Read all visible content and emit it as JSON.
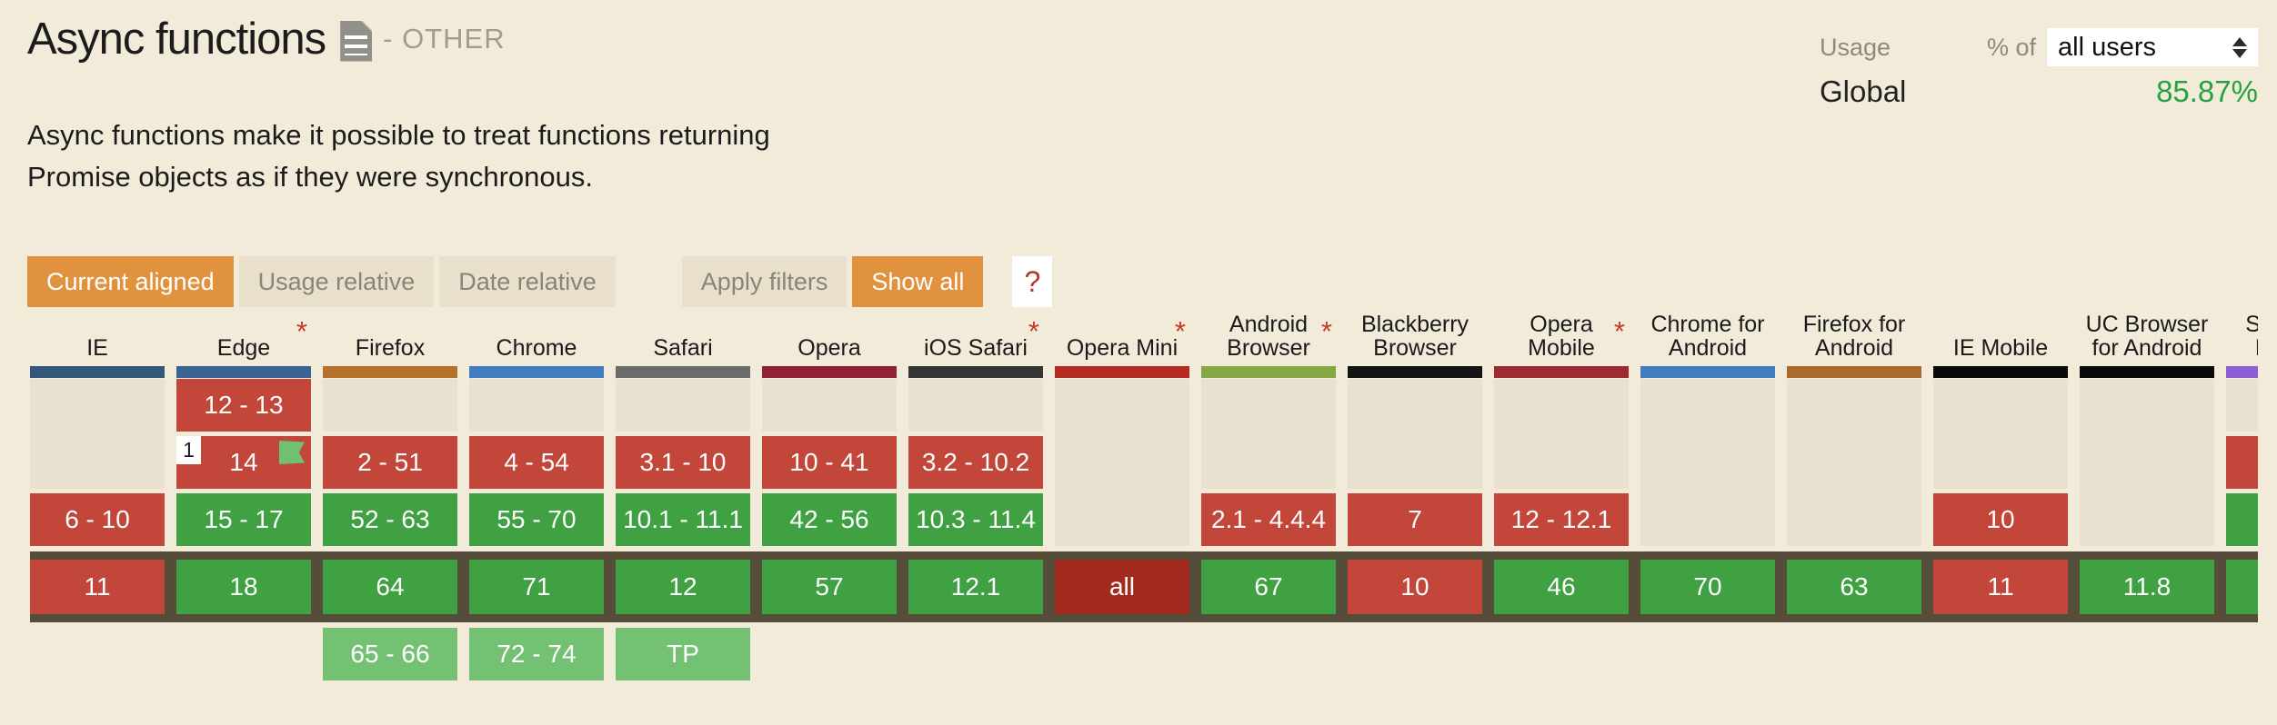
{
  "header": {
    "title": "Async functions",
    "category": "- OTHER",
    "doc_icon": "document-icon"
  },
  "usage": {
    "usage_label": "Usage",
    "percent_of_label": "% of",
    "select_value": "all users",
    "global_label": "Global",
    "global_value": "85.87%"
  },
  "description": "Async functions make it possible to treat functions returning\nPromise objects as if they were synchronous.",
  "toolbar": {
    "view_buttons": [
      {
        "label": "Current aligned",
        "state": "active"
      },
      {
        "label": "Usage relative",
        "state": "inactive"
      },
      {
        "label": "Date relative",
        "state": "inactive"
      }
    ],
    "filter_buttons": [
      {
        "label": "Apply filters",
        "state": "inactive"
      },
      {
        "label": "Show all",
        "state": "active"
      }
    ],
    "help_label": "?"
  },
  "colors": {
    "page_background": "#f2ebd9",
    "supported": "#3fa142",
    "unsupported": "#c2473a",
    "future": "#74c174",
    "all_unsupported": "#a32a1e",
    "current_row_band": "#554d39",
    "accent_orange": "#e0923f",
    "usage_green": "#27a243"
  },
  "table": {
    "browsers": [
      {
        "name": "IE",
        "asterisk": false,
        "brand": "#33567b",
        "past": [
          {
            "label": "",
            "type": "empty",
            "span": 2
          },
          {
            "label": "6 - 10",
            "type": "no"
          }
        ],
        "current": {
          "label": "11",
          "type": "no"
        },
        "future": []
      },
      {
        "name": "Edge",
        "asterisk": true,
        "brand": "#3a6494",
        "past": [
          {
            "label": "12 - 13",
            "type": "no"
          },
          {
            "label": "14",
            "type": "no",
            "note": "1",
            "flag": true
          },
          {
            "label": "15 - 17",
            "type": "yes"
          }
        ],
        "current": {
          "label": "18",
          "type": "yes"
        },
        "future": []
      },
      {
        "name": "Firefox",
        "asterisk": false,
        "brand": "#b4712c",
        "past": [
          {
            "label": "",
            "type": "empty",
            "span": 1
          },
          {
            "label": "2 - 51",
            "type": "no"
          },
          {
            "label": "52 - 63",
            "type": "yes"
          }
        ],
        "current": {
          "label": "64",
          "type": "yes"
        },
        "future": [
          {
            "label": "65 - 66",
            "type": "future"
          }
        ]
      },
      {
        "name": "Chrome",
        "asterisk": false,
        "brand": "#3f7dc0",
        "past": [
          {
            "label": "",
            "type": "empty",
            "span": 1
          },
          {
            "label": "4 - 54",
            "type": "no"
          },
          {
            "label": "55 - 70",
            "type": "yes"
          }
        ],
        "current": {
          "label": "71",
          "type": "yes"
        },
        "future": [
          {
            "label": "72 - 74",
            "type": "future"
          }
        ]
      },
      {
        "name": "Safari",
        "asterisk": false,
        "brand": "#6b6b6b",
        "past": [
          {
            "label": "",
            "type": "empty",
            "span": 1
          },
          {
            "label": "3.1 - 10",
            "type": "no"
          },
          {
            "label": "10.1 - 11.1",
            "type": "yes"
          }
        ],
        "current": {
          "label": "12",
          "type": "yes"
        },
        "future": [
          {
            "label": "TP",
            "type": "future"
          }
        ]
      },
      {
        "name": "Opera",
        "asterisk": false,
        "brand": "#8f2334",
        "past": [
          {
            "label": "",
            "type": "empty",
            "span": 1
          },
          {
            "label": "10 - 41",
            "type": "no"
          },
          {
            "label": "42 - 56",
            "type": "yes"
          }
        ],
        "current": {
          "label": "57",
          "type": "yes"
        },
        "future": []
      },
      {
        "name": "iOS Safari",
        "asterisk": true,
        "brand": "#353535",
        "past": [
          {
            "label": "",
            "type": "empty",
            "span": 1
          },
          {
            "label": "3.2 - 10.2",
            "type": "no"
          },
          {
            "label": "10.3 - 11.4",
            "type": "yes"
          }
        ],
        "current": {
          "label": "12.1",
          "type": "yes"
        },
        "future": []
      },
      {
        "name": "Opera Mini",
        "asterisk": true,
        "brand": "#b52b22",
        "past": [
          {
            "label": "",
            "type": "empty",
            "span": 3
          }
        ],
        "current": {
          "label": "all",
          "type": "allno"
        },
        "future": []
      },
      {
        "name": "Android Browser",
        "asterisk": true,
        "brand": "#85a845",
        "past": [
          {
            "label": "",
            "type": "empty",
            "span": 2
          },
          {
            "label": "2.1 - 4.4.4",
            "type": "no"
          }
        ],
        "current": {
          "label": "67",
          "type": "yes"
        },
        "future": []
      },
      {
        "name": "Blackberry Browser",
        "asterisk": false,
        "brand": "#141414",
        "past": [
          {
            "label": "",
            "type": "empty",
            "span": 2
          },
          {
            "label": "7",
            "type": "no"
          }
        ],
        "current": {
          "label": "10",
          "type": "no"
        },
        "future": []
      },
      {
        "name": "Opera Mobile",
        "asterisk": true,
        "brand": "#9e2a32",
        "past": [
          {
            "label": "",
            "type": "empty",
            "span": 2
          },
          {
            "label": "12 - 12.1",
            "type": "no"
          }
        ],
        "current": {
          "label": "46",
          "type": "yes"
        },
        "future": []
      },
      {
        "name": "Chrome for Android",
        "asterisk": false,
        "brand": "#3f7dc0",
        "past": [
          {
            "label": "",
            "type": "empty",
            "span": 3
          }
        ],
        "current": {
          "label": "70",
          "type": "yes"
        },
        "future": []
      },
      {
        "name": "Firefox for Android",
        "asterisk": false,
        "brand": "#a96a2b",
        "past": [
          {
            "label": "",
            "type": "empty",
            "span": 3
          }
        ],
        "current": {
          "label": "63",
          "type": "yes"
        },
        "future": []
      },
      {
        "name": "IE Mobile",
        "asterisk": false,
        "brand": "#0a0a0a",
        "past": [
          {
            "label": "",
            "type": "empty",
            "span": 2
          },
          {
            "label": "10",
            "type": "no"
          }
        ],
        "current": {
          "label": "11",
          "type": "no"
        },
        "future": []
      },
      {
        "name": "UC Browser for Android",
        "asterisk": false,
        "brand": "#0a0a0a",
        "past": [
          {
            "label": "",
            "type": "empty",
            "span": 3
          }
        ],
        "current": {
          "label": "11.8",
          "type": "yes"
        },
        "future": []
      },
      {
        "name": "Samsung Internet",
        "asterisk": false,
        "brand": "#8c5fd9",
        "past": [
          {
            "label": "",
            "type": "empty",
            "span": 1
          },
          {
            "label": "",
            "type": "no"
          },
          {
            "label": "",
            "type": "yes"
          }
        ],
        "current": {
          "label": "",
          "type": "yes"
        },
        "future": []
      }
    ]
  }
}
